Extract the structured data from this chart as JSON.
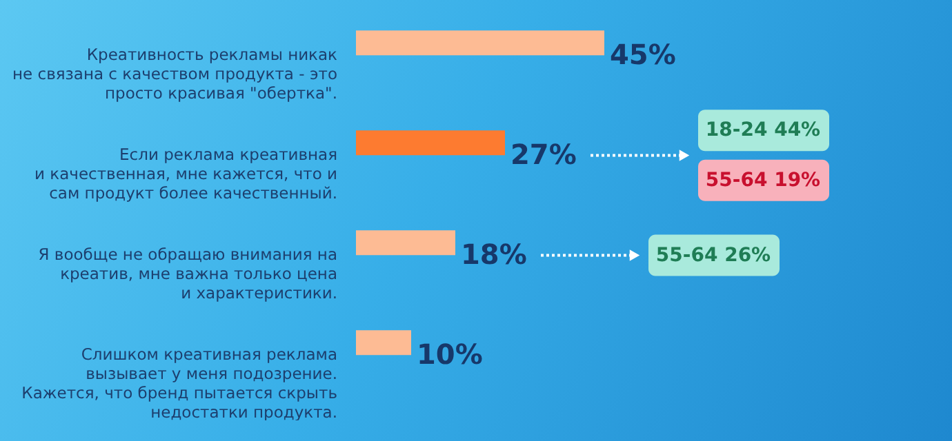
{
  "chart_data": {
    "type": "bar",
    "orientation": "horizontal",
    "categories": [
      "Креативность рекламы никак\nне связана с качеством продукта - это\nпросто красивая \"обертка\".",
      "Если реклама креативная\nи качественная, мне кажется, что и\nсам продукт более качественный.",
      "Я вообще не обращаю внимания на\nкреатив, мне важна только цена\nи характеристики.",
      "Слишком креативная реклама\nвызывает у меня подозрение.\nКажется, что бренд  пытается скрыть\nнедостатки продукта."
    ],
    "values": [
      45,
      27,
      18,
      10
    ],
    "colors": [
      "#fdbb94",
      "#fd7b30",
      "#fdbb94",
      "#fdbb94"
    ],
    "value_labels": [
      "45%",
      "27%",
      "18%",
      "10%"
    ],
    "annotations": [
      "18-24 44%",
      "55-64 19%",
      "55-64 26%"
    ]
  }
}
